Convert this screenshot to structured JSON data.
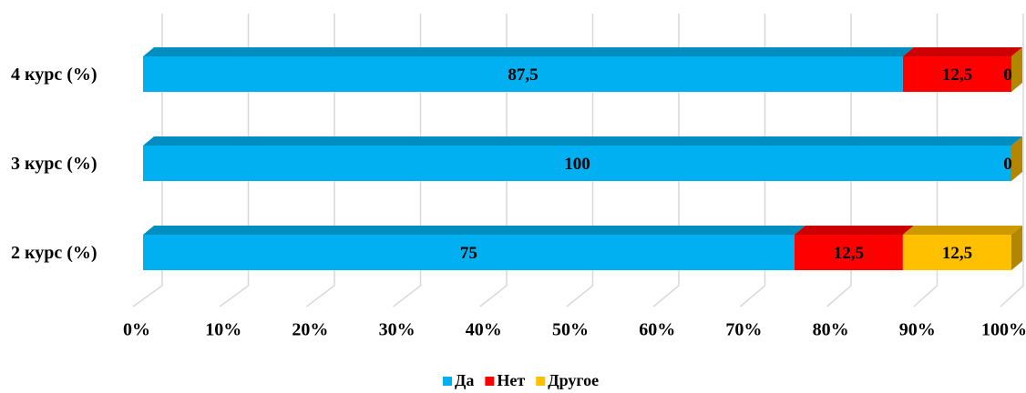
{
  "chart_data": {
    "type": "stacked_barh",
    "categories": [
      "2 курс (%)",
      "3 курс (%)",
      "4 курс (%)"
    ],
    "series": [
      {
        "name": "Да",
        "color": "#00b0f0",
        "values": [
          75,
          100,
          87.5
        ],
        "value_labels": [
          "75",
          "100",
          "87,5"
        ]
      },
      {
        "name": "Нет",
        "color": "#ff0000",
        "values": [
          12.5,
          null,
          12.5
        ],
        "value_labels": [
          "12,5",
          null,
          "12,5"
        ]
      },
      {
        "name": "Другое",
        "color": "#ffc000",
        "values": [
          12.5,
          0,
          0
        ],
        "value_labels": [
          "12,5",
          "0",
          "0"
        ]
      }
    ],
    "xlim": [
      0,
      100
    ],
    "xticks": [
      {
        "value": 0,
        "label": "0%"
      },
      {
        "value": 10,
        "label": "10%"
      },
      {
        "value": 20,
        "label": "20%"
      },
      {
        "value": 30,
        "label": "30%"
      },
      {
        "value": 40,
        "label": "40%"
      },
      {
        "value": 50,
        "label": "50%"
      },
      {
        "value": 60,
        "label": "60%"
      },
      {
        "value": 70,
        "label": "70%"
      },
      {
        "value": 80,
        "label": "80%"
      },
      {
        "value": 90,
        "label": "90%"
      },
      {
        "value": 100,
        "label": "100%"
      }
    ],
    "grid": true,
    "legend": "bottom"
  }
}
